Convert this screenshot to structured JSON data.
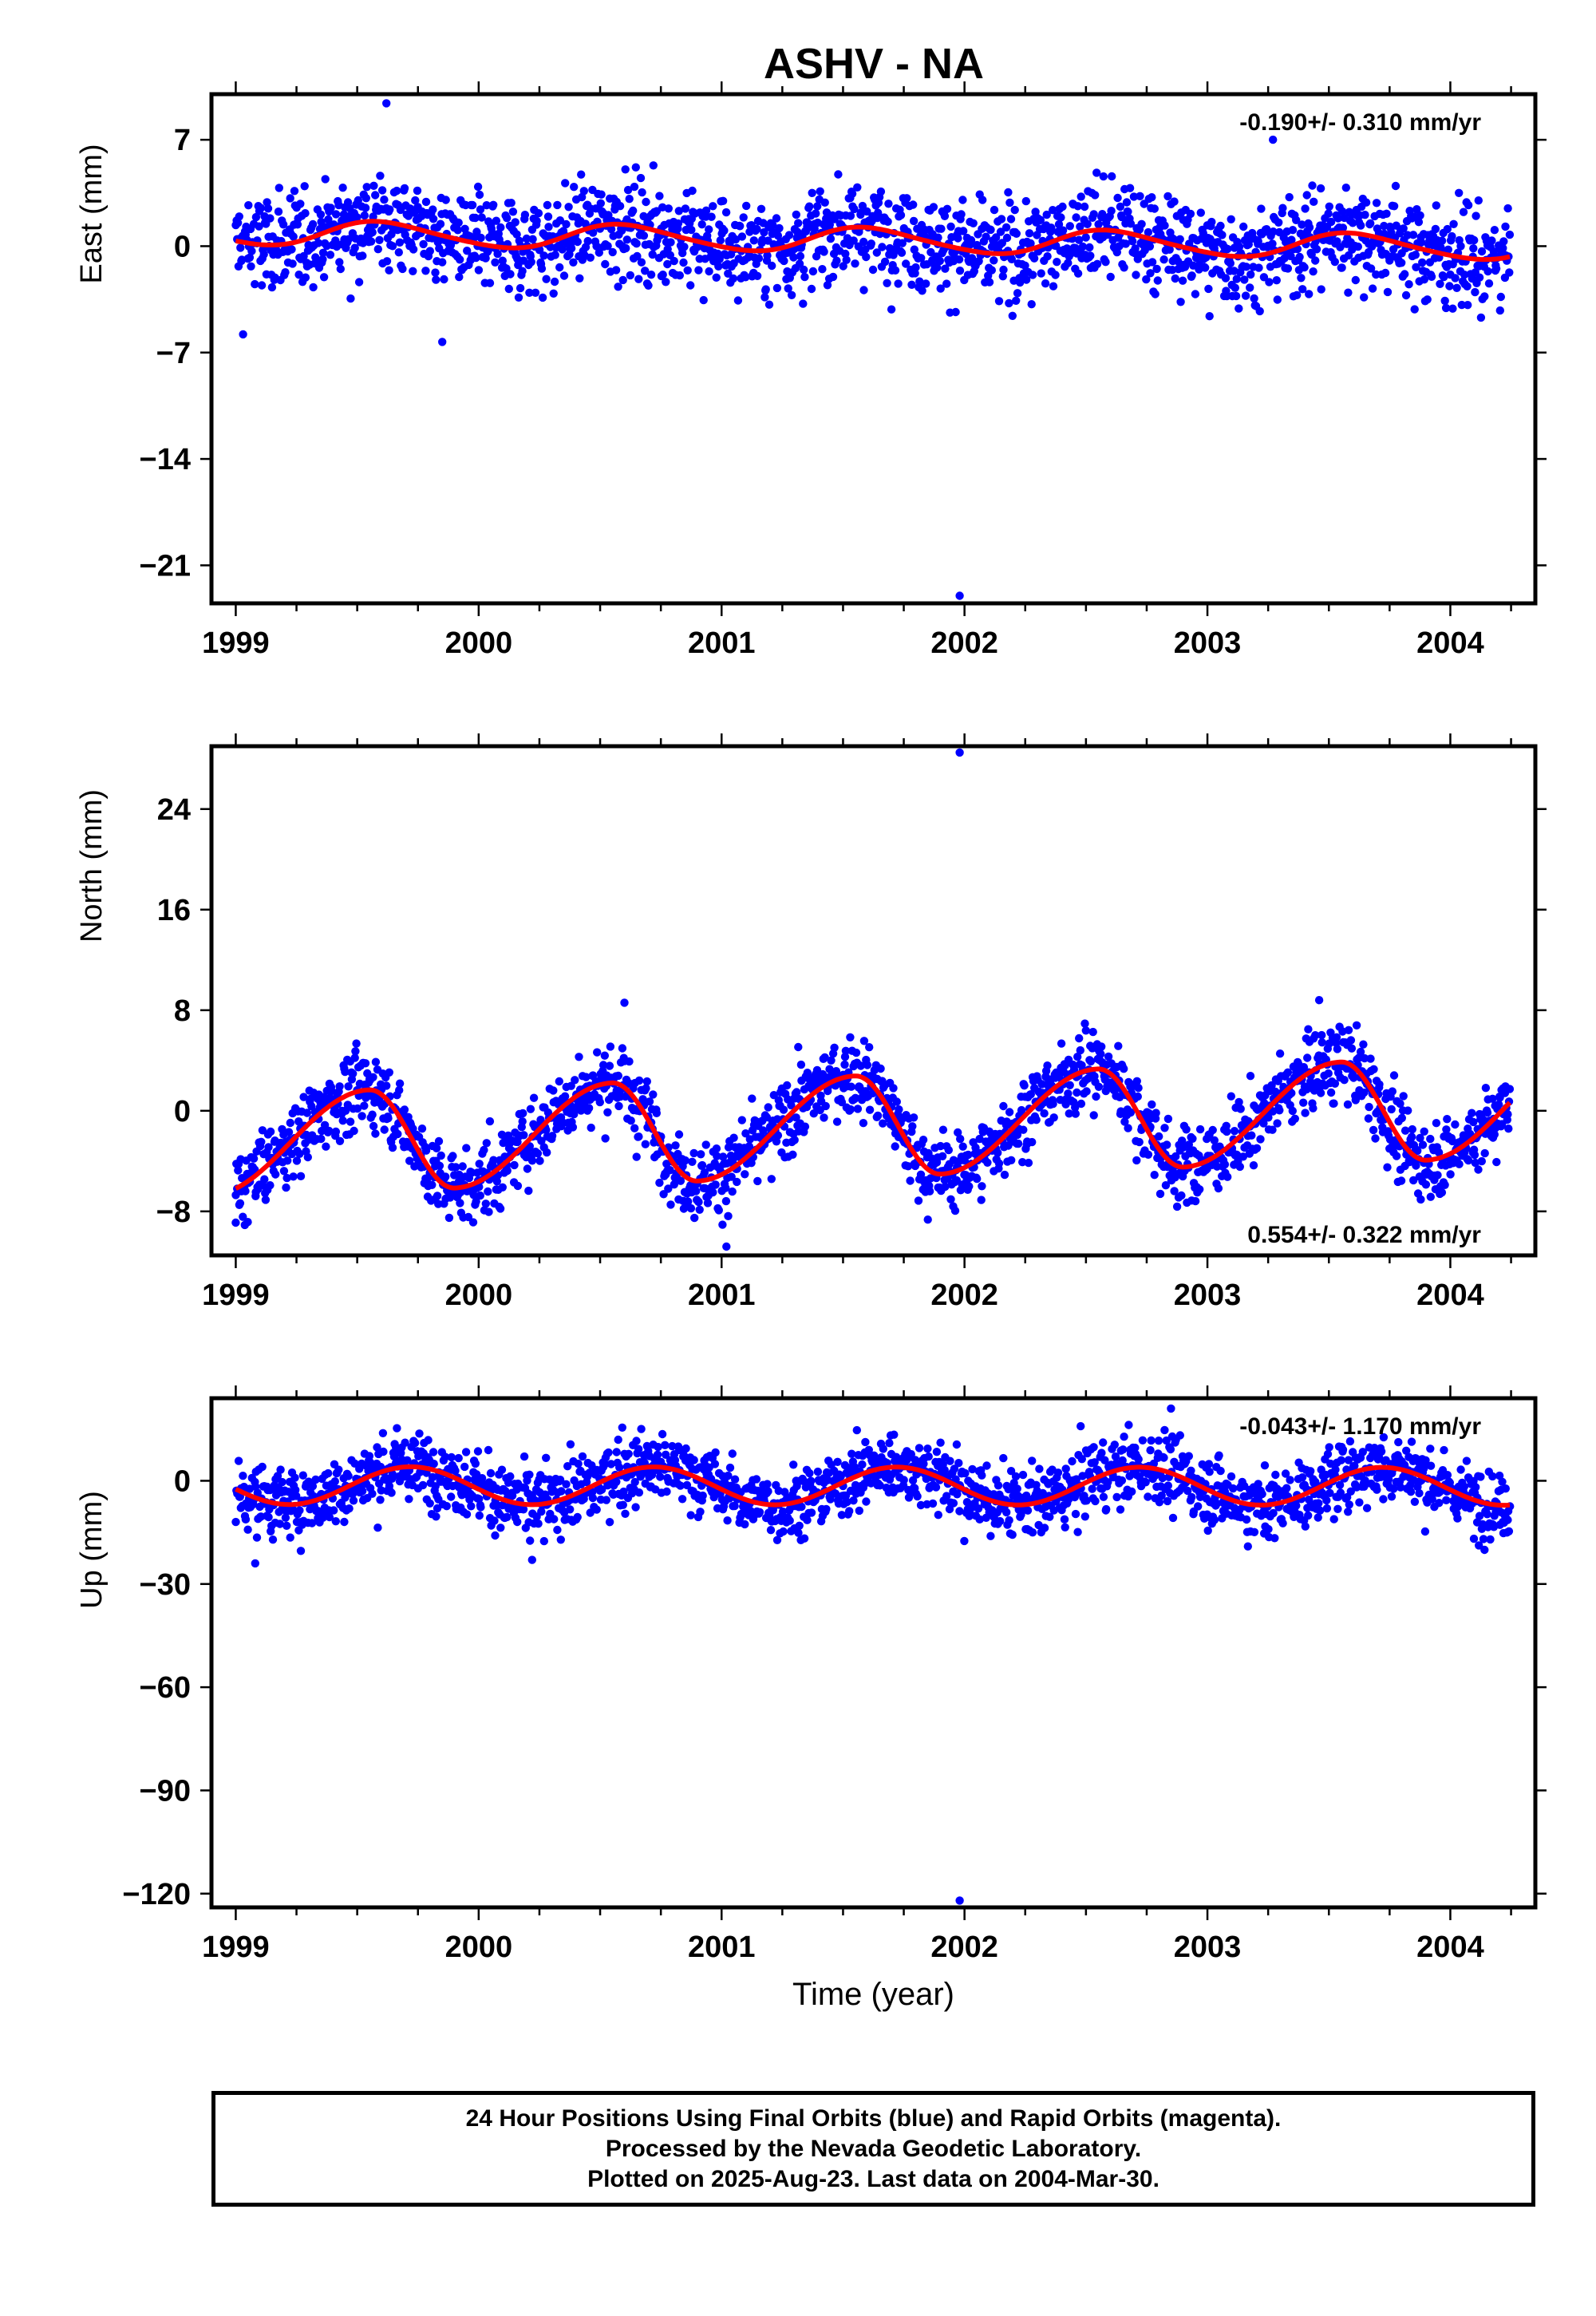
{
  "title": "ASHV - NA",
  "colors": {
    "points": "#0000ff",
    "fit": "#ff0000",
    "frame": "#000000"
  },
  "chart_data": [
    {
      "type": "scatter",
      "component": "East",
      "ylabel": "East (mm)",
      "ylim": [
        -23.5,
        10
      ],
      "yticks": [
        7,
        0,
        -7,
        -14,
        -21
      ],
      "ytick_labels": [
        "7",
        "0",
        "−7",
        "−14",
        "−21"
      ],
      "xlim": [
        1998.9,
        2004.35
      ],
      "xticks": [
        1999,
        2000,
        2001,
        2002,
        2003,
        2004
      ],
      "xtick_labels": [
        "1999",
        "2000",
        "2001",
        "2002",
        "2003",
        "2004"
      ],
      "rate_label": "-0.190+/- 0.310 mm/yr",
      "rate_position": "top-right",
      "noise_sd": 1.6,
      "fit": {
        "offset": 0.4,
        "rate": -0.19,
        "annual_amp": 0.8,
        "annual_phase_peak": 0.6,
        "semiannual_amp": 0.1
      },
      "outliers": [
        [
          1999.62,
          9.4
        ],
        [
          2001.98,
          -23.0
        ],
        [
          2003.27,
          7.0
        ],
        [
          1999.85,
          -6.3
        ],
        [
          1999.03,
          -5.8
        ]
      ],
      "series": [
        {
          "name": "Final Orbits",
          "marker": "dot",
          "color": "#0000ff"
        },
        {
          "name": "Fit",
          "marker": "line",
          "color": "#ff0000"
        }
      ]
    },
    {
      "type": "scatter",
      "component": "North",
      "ylabel": "North (mm)",
      "ylim": [
        -11.5,
        29
      ],
      "yticks": [
        24,
        16,
        8,
        0,
        -8
      ],
      "ytick_labels": [
        "24",
        "16",
        "8",
        "0",
        "−8"
      ],
      "xlim": [
        1998.9,
        2004.35
      ],
      "xticks": [
        1999,
        2000,
        2001,
        2002,
        2003,
        2004
      ],
      "xtick_labels": [
        "1999",
        "2000",
        "2001",
        "2002",
        "2003",
        "2004"
      ],
      "rate_label": "0.554+/- 0.322 mm/yr",
      "rate_position": "bottom-right",
      "noise_sd": 1.5,
      "fit": {
        "offset": -1.2,
        "rate": 0.554,
        "annual_amp": 4.0,
        "annual_phase_peak": 0.55,
        "semiannual_amp": 0.0,
        "sawtooth": true
      },
      "outliers": [
        [
          2001.98,
          28.5
        ],
        [
          2000.6,
          8.6
        ],
        [
          2003.46,
          8.8
        ],
        [
          2001.02,
          -10.8
        ],
        [
          1999.0,
          -8.9
        ]
      ],
      "series": [
        {
          "name": "Final Orbits",
          "marker": "dot",
          "color": "#0000ff"
        },
        {
          "name": "Fit",
          "marker": "line",
          "color": "#ff0000"
        }
      ]
    },
    {
      "type": "scatter",
      "component": "Up",
      "ylabel": "Up (mm)",
      "ylim": [
        -124,
        24
      ],
      "yticks": [
        0,
        -30,
        -60,
        -90,
        -120
      ],
      "ytick_labels": [
        "0",
        "−30",
        "−60",
        "−90",
        "−120"
      ],
      "xlim": [
        1998.9,
        2004.35
      ],
      "xticks": [
        1999,
        2000,
        2001,
        2002,
        2003,
        2004
      ],
      "xtick_labels": [
        "1999",
        "2000",
        "2001",
        "2002",
        "2003",
        "2004"
      ],
      "xlabel": "Time (year)",
      "rate_label": "-0.043+/- 1.170 mm/yr",
      "rate_position": "top-right",
      "noise_sd": 5.0,
      "fit": {
        "offset": -1.5,
        "rate": -0.043,
        "annual_amp": 5.5,
        "annual_phase_peak": 0.72,
        "semiannual_amp": 0.0
      },
      "outliers": [
        [
          2001.98,
          -122.0
        ],
        [
          2000.22,
          -23.0
        ],
        [
          2002.85,
          21.0
        ],
        [
          1999.08,
          -24.0
        ]
      ],
      "series": [
        {
          "name": "Final Orbits",
          "marker": "dot",
          "color": "#0000ff"
        },
        {
          "name": "Fit",
          "marker": "line",
          "color": "#ff0000"
        }
      ]
    }
  ],
  "footer": {
    "line1": "24 Hour Positions Using Final Orbits (blue) and Rapid Orbits (magenta).",
    "line2": "Processed by the Nevada Geodetic Laboratory.",
    "line3": "Plotted on 2025-Aug-23. Last data on 2004-Mar-30."
  }
}
